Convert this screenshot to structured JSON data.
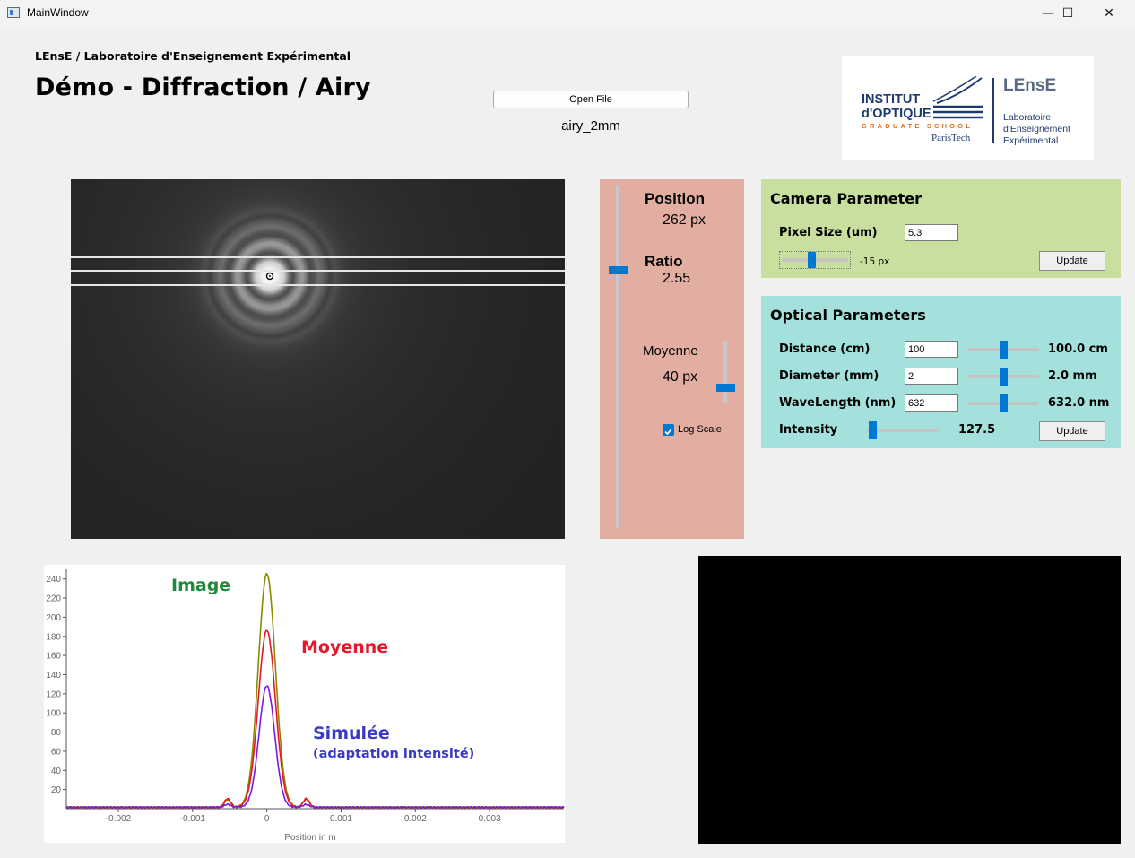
{
  "window": {
    "title": "MainWindow",
    "minimize": "—",
    "maximize": "☐",
    "close": "✕"
  },
  "header": {
    "subtitle": "LEnsE / Laboratoire d'Enseignement Expérimental",
    "title": "Démo - Diffraction / Airy"
  },
  "file": {
    "open_label": "Open File",
    "name": "airy_2mm"
  },
  "logo": {
    "line1": "INSTITUT",
    "line2": "d'OPTIQUE",
    "line3": "GRADUATE SCHOOL",
    "line4": "ParisTech",
    "brand": "LEnsE",
    "lab1": "Laboratoire",
    "lab2": "d'Enseignement",
    "lab3": "Expérimental"
  },
  "position_panel": {
    "position_label": "Position",
    "position_value": "262 px",
    "ratio_label": "Ratio",
    "ratio_value": "2.55",
    "moyenne_label": "Moyenne",
    "moyenne_value": "40 px",
    "log_scale_label": "Log Scale",
    "log_scale_checked": true
  },
  "camera": {
    "title": "Camera Parameter",
    "pixel_label": "Pixel Size (um)",
    "pixel_value": "5.3",
    "offset_value": "-15 px",
    "update_label": "Update"
  },
  "optical": {
    "title": "Optical Parameters",
    "distance_label": "Distance (cm)",
    "distance_input": "100",
    "distance_value": "100.0 cm",
    "diameter_label": "Diameter (mm)",
    "diameter_input": "2",
    "diameter_value": "2.0 mm",
    "wavelength_label": "WaveLength (nm)",
    "wavelength_input": "632",
    "wavelength_value": "632.0 nm",
    "intensity_label": "Intensity",
    "intensity_value": "127.5",
    "update_label": "Update"
  },
  "chart_data": {
    "type": "line",
    "xlabel": "Position in m",
    "xlim": [
      -0.0027,
      0.004
    ],
    "ylim": [
      0,
      250
    ],
    "x_ticks": [
      -0.002,
      -0.001,
      0,
      0.001,
      0.002,
      0.003
    ],
    "x_tick_labels": [
      "-0.002",
      "-0.001",
      "0",
      "0.001",
      "0.002",
      "0.003"
    ],
    "y_ticks": [
      20,
      40,
      60,
      80,
      100,
      120,
      140,
      160,
      180,
      200,
      220,
      240
    ],
    "grid": false,
    "series": [
      {
        "name": "Image",
        "color": "#8a8a00",
        "peak": 244,
        "sigma": 0.000115,
        "side_lobe": 8
      },
      {
        "name": "Moyenne",
        "color": "#e8162a",
        "peak": 185,
        "sigma": 0.000115,
        "side_lobe": 9
      },
      {
        "name": "Simulée",
        "color": "#7a1ae0",
        "peak": 127,
        "sigma": 0.000105,
        "side_lobe": 3
      }
    ],
    "annotations": [
      {
        "text": "Image",
        "color": "#1f8a3a"
      },
      {
        "text": "Moyenne",
        "color": "#e8162a"
      },
      {
        "text": "Simulée",
        "color": "#3a3ac8"
      },
      {
        "text": "(adaptation intensité)",
        "color": "#3a3ac8"
      }
    ]
  },
  "colors": {
    "position_panel": "#e2aea2",
    "camera_panel": "#c8dfa0",
    "optical_panel": "#a4e0dc",
    "accent": "#0078d4"
  }
}
